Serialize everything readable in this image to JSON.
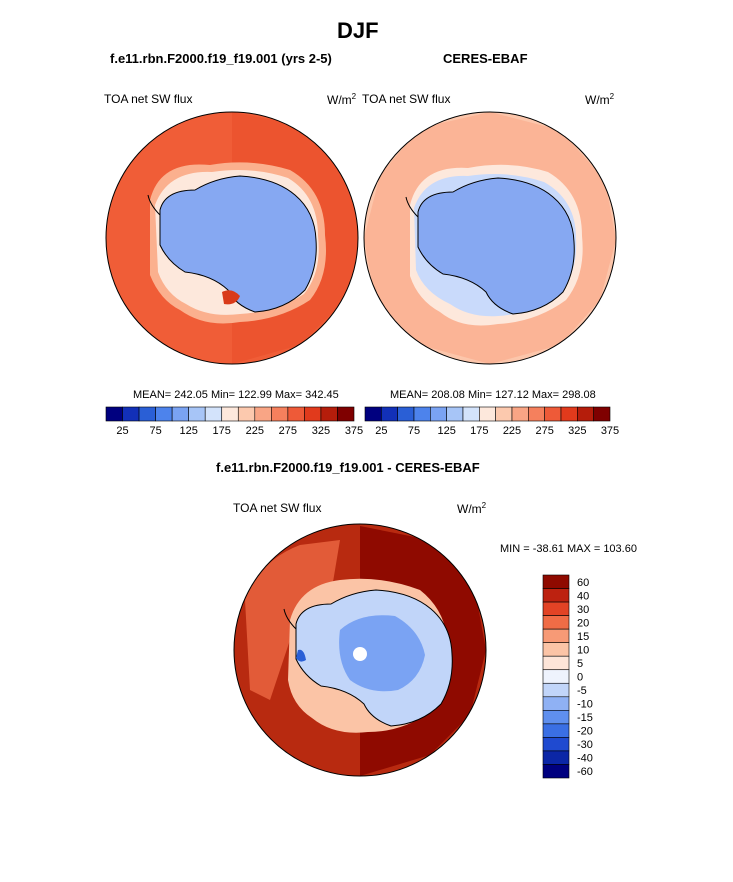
{
  "page": {
    "title": "DJF"
  },
  "panels": [
    {
      "case_title": "f.e11.rbn.F2000.f19_f19.001 (yrs 2-5)",
      "variable": "TOA net SW flux",
      "units_base": "W/m",
      "units_exp": "2",
      "stats": "MEAN= 242.05  Min= 122.99  Max= 342.45"
    },
    {
      "case_title": "CERES-EBAF",
      "variable": "TOA net SW flux",
      "units_base": "W/m",
      "units_exp": "2",
      "stats": "MEAN= 208.08  Min= 127.12  Max= 298.08"
    },
    {
      "case_title": "f.e11.rbn.F2000.f19_f19.001 - CERES-EBAF",
      "variable": "TOA net SW flux",
      "units_base": "W/m",
      "units_exp": "2",
      "stats": "MIN = -38.61 MAX = 103.60"
    }
  ],
  "colors": {
    "abs_scale": [
      "#00007f",
      "#1230b8",
      "#2a5fd6",
      "#4d83ec",
      "#7aa3f3",
      "#a7c5f7",
      "#d3e3fb",
      "#fde8dc",
      "#fcc9ae",
      "#f9a585",
      "#f5805d",
      "#ee5a38",
      "#e13a1c",
      "#b51d0b",
      "#7f0000"
    ],
    "diff_scale": [
      "#00007f",
      "#0b26a6",
      "#1f4ad0",
      "#3a6fe4",
      "#5f8fee",
      "#8fb1f4",
      "#c1d5f9",
      "#eef3fd",
      "#fde5d8",
      "#fbc4a6",
      "#f79a76",
      "#f06c46",
      "#e24325",
      "#bd2210",
      "#8f0a00"
    ],
    "ice_model": "#86a8f2",
    "ice_obs": "#86a8f2",
    "ocean_model": "#f05d37",
    "ocean_obs": "#fcc6ab"
  },
  "chart_data": [
    {
      "type": "heatmap",
      "title": "TOA net SW flux",
      "subtitle": "f.e11.rbn.F2000.f19_f19.001 (yrs 2-5)",
      "projection": "south-polar-stereographic",
      "units": "W/m2",
      "mean": 242.05,
      "min": 122.99,
      "max": 342.45,
      "colorbar_ticks": [
        25,
        75,
        125,
        175,
        225,
        275,
        325,
        375
      ],
      "colorbar_levels": [
        0,
        25,
        50,
        75,
        100,
        125,
        150,
        175,
        200,
        225,
        250,
        275,
        300,
        325,
        350,
        375,
        400
      ],
      "colorbar_orientation": "horizontal"
    },
    {
      "type": "heatmap",
      "title": "TOA net SW flux",
      "subtitle": "CERES-EBAF",
      "projection": "south-polar-stereographic",
      "units": "W/m2",
      "mean": 208.08,
      "min": 127.12,
      "max": 298.08,
      "colorbar_ticks": [
        25,
        75,
        125,
        175,
        225,
        275,
        325,
        375
      ],
      "colorbar_levels": [
        0,
        25,
        50,
        75,
        100,
        125,
        150,
        175,
        200,
        225,
        250,
        275,
        300,
        325,
        350,
        375,
        400
      ],
      "colorbar_orientation": "horizontal"
    },
    {
      "type": "heatmap",
      "title": "TOA net SW flux",
      "subtitle": "f.e11.rbn.F2000.f19_f19.001 - CERES-EBAF",
      "projection": "south-polar-stereographic",
      "units": "W/m2",
      "min": -38.61,
      "max": 103.6,
      "colorbar_ticks": [
        "60",
        "40",
        "30",
        "20",
        "15",
        "10",
        "5",
        "0",
        "-5",
        "-10",
        "-15",
        "-20",
        "-30",
        "-40",
        "-60"
      ],
      "colorbar_orientation": "vertical"
    }
  ]
}
